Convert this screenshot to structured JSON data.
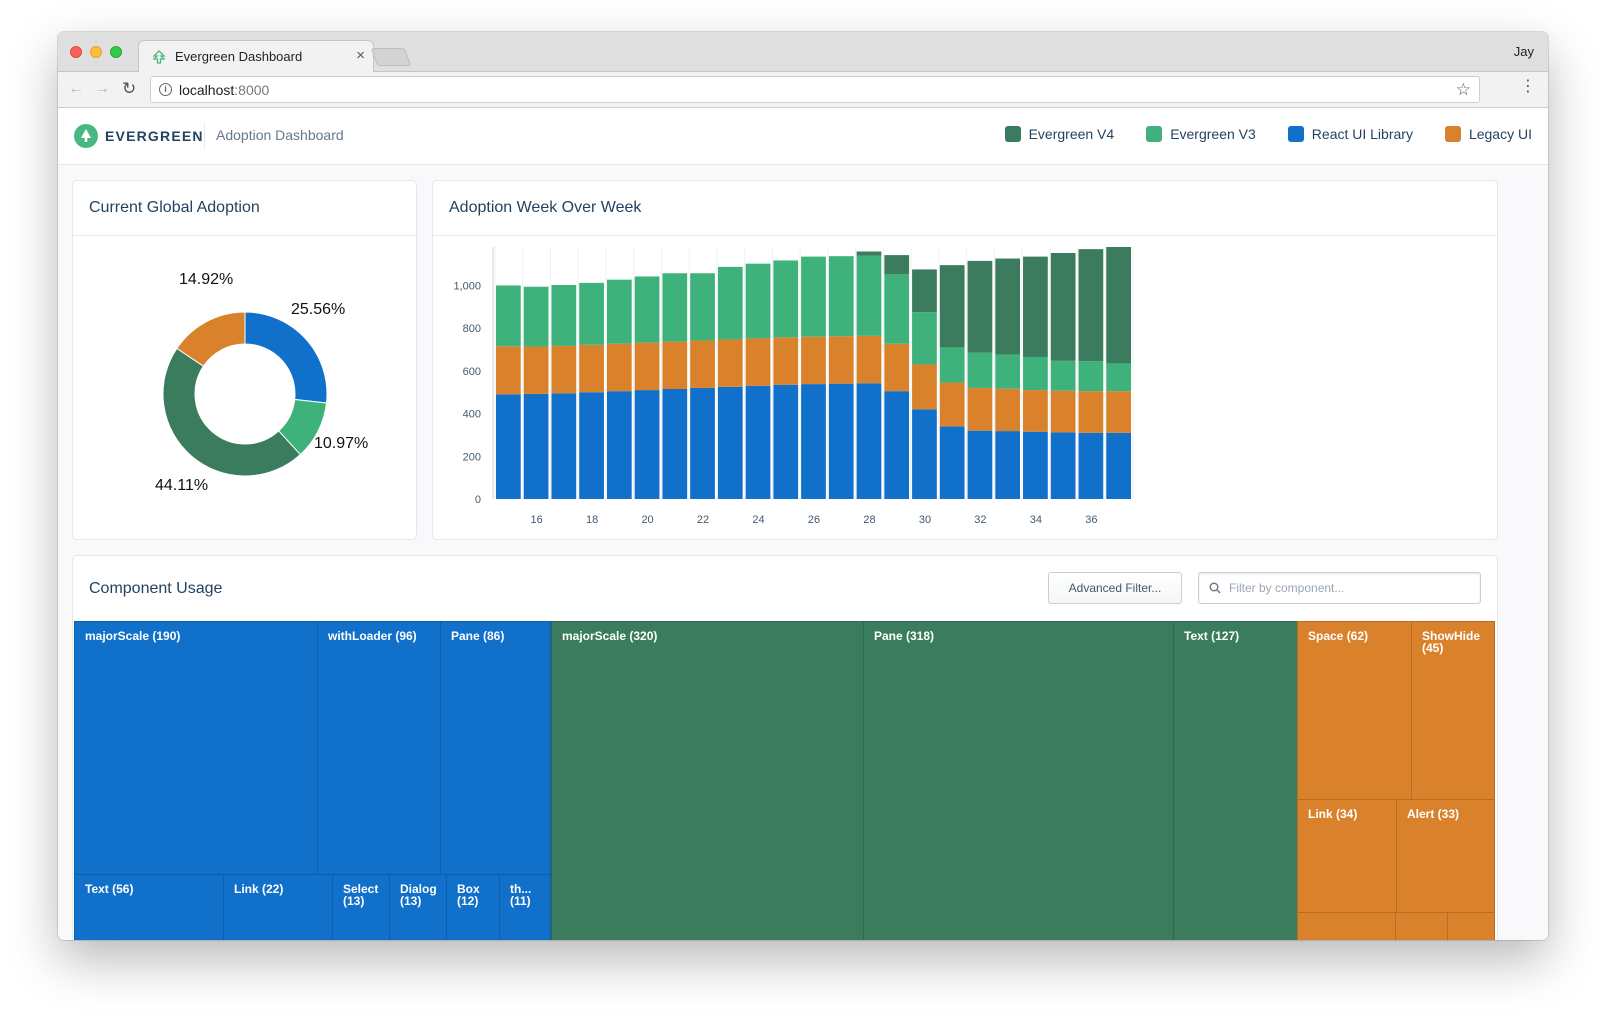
{
  "browser": {
    "tab_title": "Evergreen Dashboard",
    "tab_close": "×",
    "profile_name": "Jay",
    "url_host": "localhost",
    "url_port": ":8000",
    "icons": [
      "back-arrow-icon",
      "forward-arrow-icon",
      "reload-icon",
      "info-icon",
      "star-icon",
      "kebab-menu-icon"
    ]
  },
  "header": {
    "brand": "EVERGREEN",
    "subtitle": "Adoption Dashboard",
    "legend": [
      {
        "label": "Evergreen V4",
        "color": "#3a7c5d"
      },
      {
        "label": "Evergreen V3",
        "color": "#3eb27a"
      },
      {
        "label": "React UI Library",
        "color": "#1070ca"
      },
      {
        "label": "Legacy UI",
        "color": "#d9822b"
      }
    ]
  },
  "adoption_card": {
    "title": "Current Global Adoption",
    "labels": {
      "react": "25.56%",
      "v3": "10.97%",
      "v4": "44.11%",
      "legacy": "14.92%"
    }
  },
  "wow_card": {
    "title": "Adoption Week Over Week"
  },
  "usage_card": {
    "title": "Component Usage",
    "advanced_filter": "Advanced Filter...",
    "filter_placeholder": "Filter by component..."
  },
  "treemap": [
    {
      "label": "majorScale (190)",
      "group": "react"
    },
    {
      "label": "withLoader (96)",
      "group": "react"
    },
    {
      "label": "Pane (86)",
      "group": "react"
    },
    {
      "label": "Text (56)",
      "group": "react"
    },
    {
      "label": "Link (22)",
      "group": "react"
    },
    {
      "label": "Select (13)",
      "group": "react"
    },
    {
      "label": "Dialog (13)",
      "group": "react"
    },
    {
      "label": "Box (12)",
      "group": "react"
    },
    {
      "label": "th... (11)",
      "group": "react"
    },
    {
      "label": "majorScale (320)",
      "group": "v4"
    },
    {
      "label": "Pane (318)",
      "group": "v4"
    },
    {
      "label": "Text (127)",
      "group": "v4"
    },
    {
      "label": "Space (62)",
      "group": "legacy"
    },
    {
      "label": "ShowHide (45)",
      "group": "legacy"
    },
    {
      "label": "Link (34)",
      "group": "legacy"
    },
    {
      "label": "Alert (33)",
      "group": "legacy"
    }
  ],
  "chart_data": [
    {
      "type": "pie",
      "variant": "donut",
      "title": "Current Global Adoption",
      "categories": [
        "React UI Library",
        "Evergreen V3",
        "Evergreen V4",
        "Legacy UI"
      ],
      "values": [
        25.56,
        10.97,
        44.11,
        14.92
      ],
      "colors": [
        "#1070ca",
        "#3eb27a",
        "#3a7c5d",
        "#d9822b"
      ]
    },
    {
      "type": "bar",
      "stacked": true,
      "title": "Adoption Week Over Week",
      "x": [
        15,
        16,
        17,
        18,
        19,
        20,
        21,
        22,
        23,
        24,
        25,
        26,
        27,
        28,
        29,
        30,
        31,
        32,
        33,
        34,
        35,
        36,
        37
      ],
      "x_ticks": [
        16,
        18,
        20,
        22,
        24,
        26,
        28,
        30,
        32,
        34,
        36
      ],
      "y_ticks": [
        0,
        200,
        400,
        600,
        800,
        1000
      ],
      "y_tick_labels": [
        "0",
        "200",
        "400",
        "600",
        "800",
        "1,000"
      ],
      "ylim": [
        0,
        1180
      ],
      "series": [
        {
          "name": "React UI Library",
          "color": "#1070ca",
          "values": [
            490,
            492,
            495,
            500,
            505,
            510,
            515,
            520,
            525,
            530,
            535,
            538,
            540,
            542,
            505,
            420,
            340,
            320,
            318,
            315,
            312,
            310,
            310
          ]
        },
        {
          "name": "Legacy UI",
          "color": "#d9822b",
          "values": [
            225,
            222,
            222,
            222,
            222,
            222,
            222,
            222,
            222,
            222,
            222,
            222,
            222,
            222,
            222,
            210,
            205,
            200,
            198,
            195,
            195,
            195,
            195
          ]
        },
        {
          "name": "Evergreen V3",
          "color": "#3eb27a",
          "values": [
            285,
            280,
            285,
            290,
            300,
            310,
            320,
            315,
            340,
            350,
            360,
            375,
            375,
            375,
            325,
            245,
            165,
            165,
            160,
            155,
            140,
            140,
            130
          ]
        },
        {
          "name": "Evergreen V4",
          "color": "#3a7c5d",
          "values": [
            0,
            0,
            0,
            0,
            0,
            0,
            0,
            0,
            0,
            0,
            0,
            0,
            0,
            20,
            90,
            200,
            385,
            430,
            450,
            470,
            505,
            525,
            545
          ]
        }
      ]
    }
  ]
}
